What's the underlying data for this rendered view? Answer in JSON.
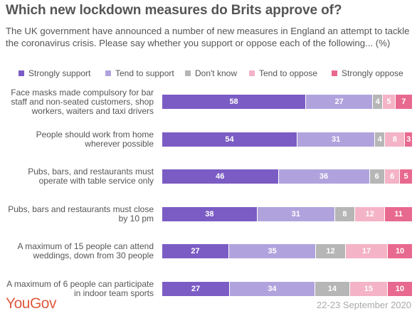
{
  "title": "Which new lockdown measures do Brits approve of?",
  "subtitle": "The UK government have announced a number of new measures in England an attempt to tackle the coronavirus crisis. Please say whether you support or oppose each of the following... (%)",
  "brand": "YouGov",
  "date": "22-23 September 2020",
  "colors": {
    "Strongly support": "#7b5cc4",
    "Tend to support": "#b0a3dd",
    "Don't know": "#b6b6b6",
    "Tend to oppose": "#f4b3c6",
    "Strongly oppose": "#e8698f",
    "brand": "#e05a3f"
  },
  "chart_data": {
    "type": "bar",
    "orientation": "horizontal",
    "stacked": true,
    "legend_position": "top",
    "categories": [
      "Face masks made compulsory for bar staff and non-seated customers, shop workers, waiters and taxi drivers",
      "People should work from home wherever possible",
      "Pubs, bars, and restaurants must operate with table service only",
      "Pubs, bars and restaurants must close by 10 pm",
      "A maximum of 15 people can attend weddings, down from 30 people",
      "A maximum of 6 people can participate in indoor team sports"
    ],
    "series": [
      {
        "name": "Strongly support",
        "values": [
          58,
          54,
          46,
          38,
          27,
          27
        ]
      },
      {
        "name": "Tend to support",
        "values": [
          27,
          31,
          36,
          31,
          35,
          34
        ]
      },
      {
        "name": "Don't know",
        "values": [
          4,
          4,
          6,
          8,
          12,
          14
        ]
      },
      {
        "name": "Tend to oppose",
        "values": [
          5,
          8,
          6,
          12,
          17,
          15
        ]
      },
      {
        "name": "Strongly oppose",
        "values": [
          7,
          3,
          5,
          11,
          10,
          10
        ]
      }
    ]
  }
}
